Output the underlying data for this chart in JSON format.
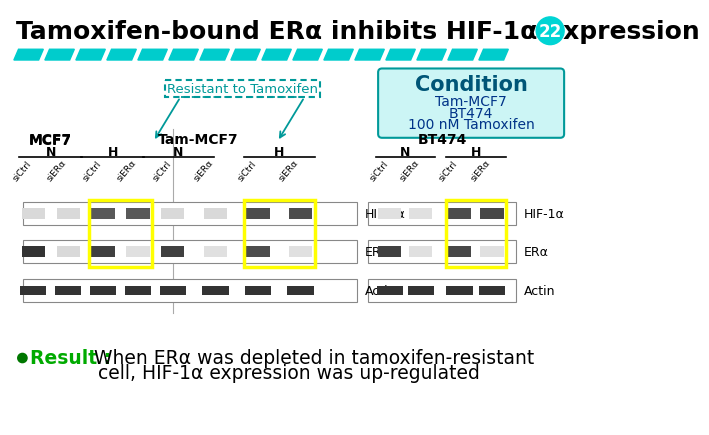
{
  "background_color": "#ffffff",
  "title": "Tamoxifen-bound ERα inhibits HIF-1α expression",
  "title_color": "#000000",
  "title_fontsize": 18,
  "slide_number": "22",
  "slide_number_bg": "#00d4d4",
  "slide_number_color": "#ffffff",
  "divider_color": "#00cccc",
  "resistant_label": "Resistant to Tamoxifen",
  "resistant_color": "#009999",
  "condition_box_bg": "#ccf5f5",
  "condition_box_border": "#009999",
  "condition_title": "Condition",
  "condition_title_color": "#005577",
  "condition_items": [
    "Tam-MCF7",
    "BT474",
    "100 nM Tamoxifen"
  ],
  "condition_items_color": "#003388",
  "result_dot_color": "#007700",
  "result_label": "Result :",
  "result_rest": " When ERα was depleted in tamoxifen-resistant",
  "result_line2": "cell, HIF-1α expression was up-regulated",
  "result_label_color": "#00aa00",
  "result_body_color": "#000000",
  "result_fontsize": 13.5,
  "mcf7_label": "MCF7",
  "tam_mcf7_label": "Tam-MCF7",
  "bt474_label": "BT474",
  "n_label": "N",
  "h_label": "H",
  "hif_label": "HIF-1α",
  "er_label": "ERα",
  "actin_label": "Actin",
  "sictrl_label": "siCtrl",
  "siera_label": "siERα",
  "yellow_box_color": "#ffff00",
  "arrow_color": "#009999"
}
